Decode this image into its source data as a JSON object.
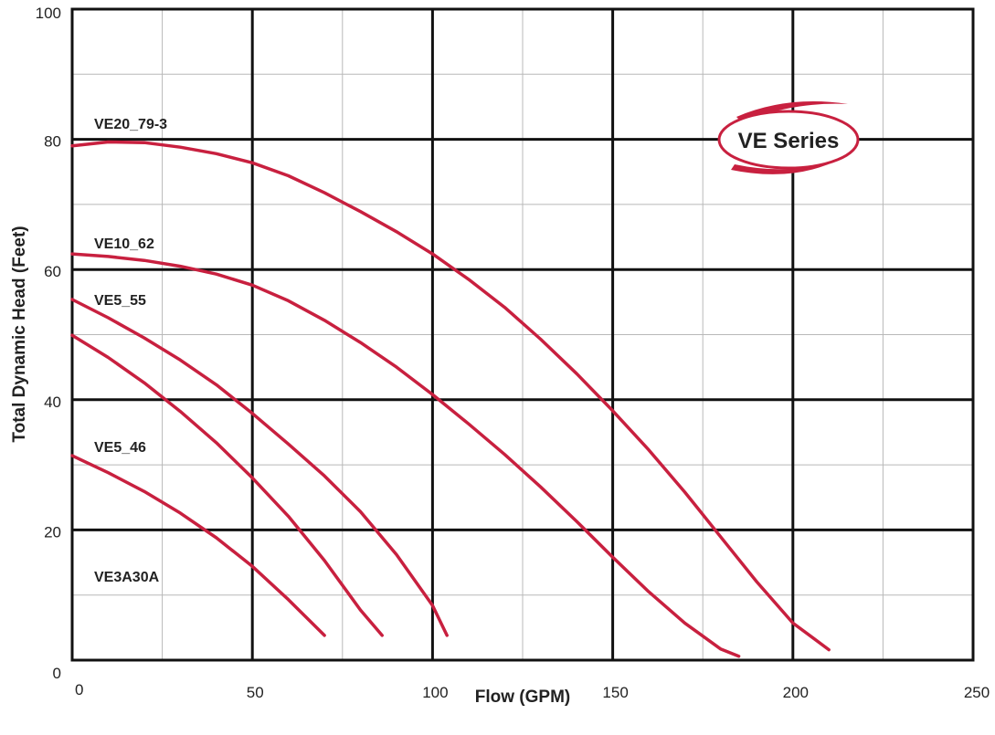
{
  "chart_data": {
    "type": "line",
    "title": "",
    "xlabel": "Flow (GPM)",
    "ylabel": "Total Dynamic Head (Feet)",
    "xlim": [
      0,
      250
    ],
    "ylim": [
      0,
      100
    ],
    "x_ticks": [
      "0",
      "50",
      "100",
      "150",
      "200",
      "250"
    ],
    "y_ticks": [
      "0",
      "20",
      "40",
      "60",
      "80",
      "100"
    ],
    "grid": true,
    "badge": "VE Series",
    "accent_color": "#c8203f",
    "series": [
      {
        "name": "VE20_79-3",
        "points": [
          [
            0,
            79
          ],
          [
            10,
            79.6
          ],
          [
            20,
            79.5
          ],
          [
            30,
            78.8
          ],
          [
            40,
            77.8
          ],
          [
            50,
            76.4
          ],
          [
            60,
            74.4
          ],
          [
            70,
            71.8
          ],
          [
            80,
            68.9
          ],
          [
            90,
            65.8
          ],
          [
            100,
            62.4
          ],
          [
            110,
            58.5
          ],
          [
            120,
            54.2
          ],
          [
            130,
            49.3
          ],
          [
            140,
            44.0
          ],
          [
            150,
            38.3
          ],
          [
            160,
            32.3
          ],
          [
            170,
            25.8
          ],
          [
            180,
            18.9
          ],
          [
            190,
            12.0
          ],
          [
            200,
            5.7
          ],
          [
            210,
            1.6
          ]
        ]
      },
      {
        "name": "VE10_62",
        "points": [
          [
            0,
            62.4
          ],
          [
            10,
            62
          ],
          [
            20,
            61.4
          ],
          [
            30,
            60.5
          ],
          [
            40,
            59.3
          ],
          [
            50,
            57.6
          ],
          [
            60,
            55.2
          ],
          [
            70,
            52.2
          ],
          [
            80,
            48.8
          ],
          [
            90,
            45.0
          ],
          [
            100,
            40.8
          ],
          [
            110,
            36.3
          ],
          [
            120,
            31.6
          ],
          [
            130,
            26.6
          ],
          [
            140,
            21.3
          ],
          [
            150,
            15.8
          ],
          [
            160,
            10.5
          ],
          [
            170,
            5.7
          ],
          [
            180,
            1.7
          ],
          [
            185,
            0.6
          ]
        ]
      },
      {
        "name": "VE5_55",
        "points": [
          [
            0,
            55.4
          ],
          [
            10,
            52.6
          ],
          [
            20,
            49.5
          ],
          [
            30,
            46.1
          ],
          [
            40,
            42.3
          ],
          [
            50,
            37.9
          ],
          [
            60,
            33.2
          ],
          [
            70,
            28.3
          ],
          [
            80,
            22.8
          ],
          [
            90,
            16.2
          ],
          [
            100,
            8.4
          ],
          [
            104,
            3.8
          ]
        ]
      },
      {
        "name": "VE5_46",
        "points": [
          [
            0,
            49.9
          ],
          [
            10,
            46.5
          ],
          [
            20,
            42.6
          ],
          [
            30,
            38.2
          ],
          [
            40,
            33.4
          ],
          [
            50,
            28.0
          ],
          [
            60,
            22.1
          ],
          [
            70,
            15.3
          ],
          [
            80,
            7.7
          ],
          [
            86,
            3.8
          ]
        ]
      },
      {
        "name": "VE3A30A",
        "points": [
          [
            0,
            31.4
          ],
          [
            10,
            28.8
          ],
          [
            20,
            25.9
          ],
          [
            30,
            22.6
          ],
          [
            40,
            18.8
          ],
          [
            50,
            14.4
          ],
          [
            60,
            9.3
          ],
          [
            70,
            3.8
          ]
        ]
      }
    ]
  }
}
